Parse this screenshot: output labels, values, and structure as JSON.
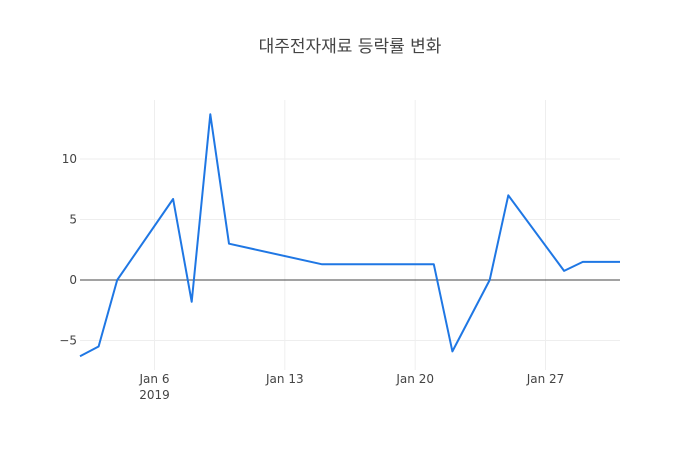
{
  "chart_data": {
    "type": "line",
    "title": "대주전자재료 등락률 변화",
    "xlabel": "",
    "ylabel": "",
    "x": [
      "2019-01-02",
      "2019-01-03",
      "2019-01-04",
      "2019-01-07",
      "2019-01-08",
      "2019-01-09",
      "2019-01-10",
      "2019-01-15",
      "2019-01-21",
      "2019-01-22",
      "2019-01-24",
      "2019-01-25",
      "2019-01-28",
      "2019-01-29",
      "2019-01-31"
    ],
    "series": [
      {
        "name": "등락률",
        "color": "#1f77e4",
        "values": [
          -6.3,
          -5.5,
          0.0,
          6.7,
          -1.8,
          13.7,
          3.0,
          1.3,
          1.3,
          -5.9,
          0.0,
          7.0,
          0.75,
          1.5,
          1.5
        ]
      }
    ],
    "xlim": [
      "2019-01-02",
      "2019-01-31"
    ],
    "ylim": [
      -7.44,
      14.88
    ],
    "x_ticks": [
      {
        "date": "2019-01-06",
        "label": "Jan 6",
        "sublabel": "2019"
      },
      {
        "date": "2019-01-13",
        "label": "Jan 13",
        "sublabel": ""
      },
      {
        "date": "2019-01-20",
        "label": "Jan 20",
        "sublabel": ""
      },
      {
        "date": "2019-01-27",
        "label": "Jan 27",
        "sublabel": ""
      }
    ],
    "y_ticks": [
      {
        "value": 10,
        "label": "10"
      },
      {
        "value": 5,
        "label": "5"
      },
      {
        "value": 0,
        "label": "0"
      },
      {
        "value": -5,
        "label": "−5"
      }
    ],
    "grid": true,
    "zero_line": true,
    "legend": false
  }
}
